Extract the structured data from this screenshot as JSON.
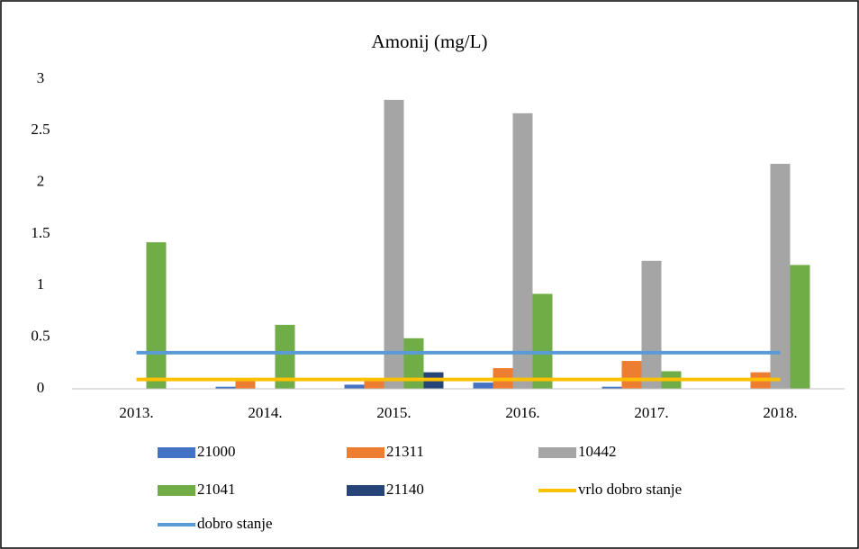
{
  "chart_data": {
    "type": "bar",
    "title": "Amonij (mg/L)",
    "categories": [
      "2013.",
      "2014.",
      "2015.",
      "2016.",
      "2017.",
      "2018."
    ],
    "ylim": [
      0,
      3
    ],
    "yticks": [
      0,
      0.5,
      1,
      1.5,
      2,
      2.5,
      3
    ],
    "grid": false,
    "series": [
      {
        "name": "21000",
        "color": "#4472c4",
        "values": [
          0,
          0.02,
          0.04,
          0.06,
          0.02,
          0
        ]
      },
      {
        "name": "21311",
        "color": "#ed7d31",
        "values": [
          0,
          0.08,
          0.1,
          0.2,
          0.27,
          0.16
        ]
      },
      {
        "name": "10442",
        "color": "#a5a5a5",
        "values": [
          0,
          0,
          2.8,
          2.67,
          1.24,
          2.18
        ]
      },
      {
        "name": "21041",
        "color": "#70ad47",
        "values": [
          1.42,
          0.62,
          0.49,
          0.92,
          0.17,
          1.2
        ]
      },
      {
        "name": "21140",
        "color": "#264478",
        "values": [
          0,
          0,
          0.16,
          0,
          0,
          0
        ]
      },
      {
        "name": "vrlo dobro stanje",
        "type": "line",
        "color": "#ffc000",
        "values": [
          0.09,
          0.09,
          0.09,
          0.09,
          0.09,
          0.09
        ]
      },
      {
        "name": "dobro stanje",
        "type": "line",
        "color": "#5b9bd5",
        "values": [
          0.35,
          0.35,
          0.35,
          0.35,
          0.35,
          0.35
        ]
      }
    ]
  }
}
